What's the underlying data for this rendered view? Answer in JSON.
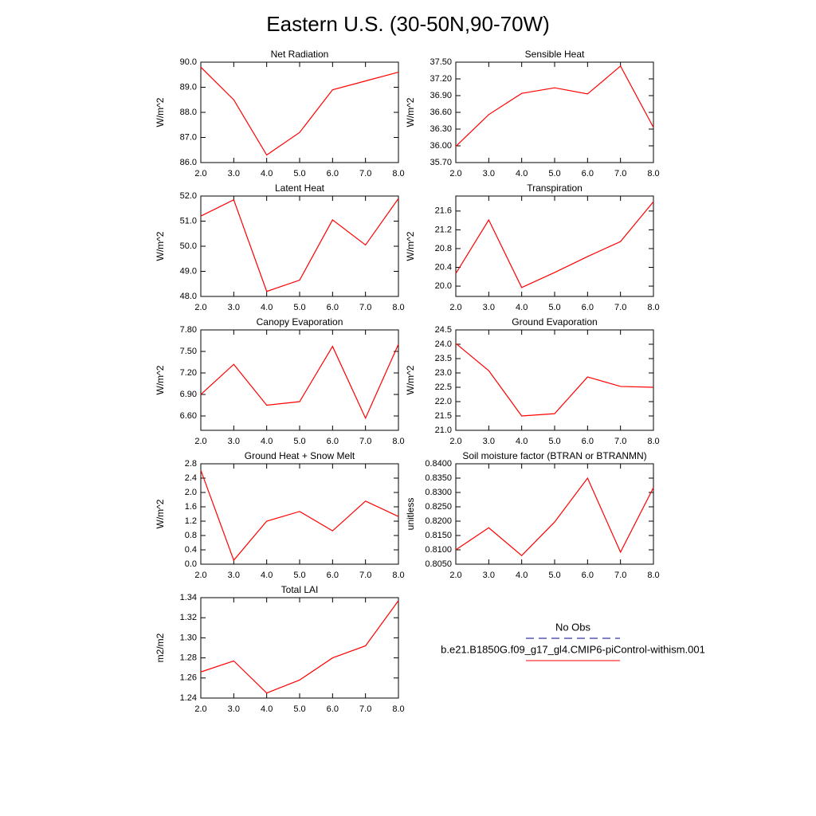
{
  "title": "Eastern U.S. (30-50N,90-70W)",
  "legend": [
    {
      "name": "No Obs",
      "color": "#00008b",
      "dash": true
    },
    {
      "name": "b.e21.B1850G.f09_g17_gl4.CMIP6-piControl-withism.001",
      "color": "#ff0000",
      "dash": false
    }
  ],
  "chart_data": [
    {
      "type": "line",
      "title": "Net Radiation",
      "y_label": "W/m^2",
      "x": [
        2,
        3,
        4,
        5,
        6,
        7,
        8
      ],
      "color": "#ff0000",
      "values": [
        89.8,
        88.5,
        86.3,
        87.2,
        88.9,
        89.25,
        89.6
      ],
      "xlim": [
        2,
        8
      ],
      "xticks": [
        {
          "value": 2,
          "label": "2.0"
        },
        {
          "value": 3,
          "label": "3.0"
        },
        {
          "value": 4,
          "label": "4.0"
        },
        {
          "value": 5,
          "label": "5.0"
        },
        {
          "value": 6,
          "label": "6.0"
        },
        {
          "value": 7,
          "label": "7.0"
        },
        {
          "value": 8,
          "label": "8.0"
        }
      ],
      "ylim": [
        86,
        90
      ],
      "yticks": [
        {
          "value": 86,
          "label": "86.0"
        },
        {
          "value": 87,
          "label": "87.0"
        },
        {
          "value": 88,
          "label": "88.0"
        },
        {
          "value": 89,
          "label": "89.0"
        },
        {
          "value": 90,
          "label": "90.0"
        }
      ]
    },
    {
      "type": "line",
      "title": "Sensible Heat",
      "y_label": "W/m^2",
      "x": [
        2,
        3,
        4,
        5,
        6,
        7,
        8
      ],
      "color": "#ff0000",
      "values": [
        35.99,
        36.56,
        36.94,
        37.04,
        36.93,
        37.43,
        36.33
      ],
      "xlim": [
        2,
        8
      ],
      "xticks": [
        {
          "value": 2,
          "label": "2.0"
        },
        {
          "value": 3,
          "label": "3.0"
        },
        {
          "value": 4,
          "label": "4.0"
        },
        {
          "value": 5,
          "label": "5.0"
        },
        {
          "value": 6,
          "label": "6.0"
        },
        {
          "value": 7,
          "label": "7.0"
        },
        {
          "value": 8,
          "label": "8.0"
        }
      ],
      "ylim": [
        35.7,
        37.5
      ],
      "yticks": [
        {
          "value": 35.7,
          "label": "35.70"
        },
        {
          "value": 36,
          "label": "36.00"
        },
        {
          "value": 36.3,
          "label": "36.30"
        },
        {
          "value": 36.6,
          "label": "36.60"
        },
        {
          "value": 36.9,
          "label": "36.90"
        },
        {
          "value": 37.2,
          "label": "37.20"
        },
        {
          "value": 37.5,
          "label": "37.50"
        }
      ]
    },
    {
      "type": "line",
      "title": "Latent Heat",
      "y_label": "W/m^2",
      "x": [
        2,
        3,
        4,
        5,
        6,
        7,
        8
      ],
      "color": "#ff0000",
      "values": [
        51.2,
        51.85,
        48.2,
        48.65,
        51.05,
        50.05,
        51.9
      ],
      "xlim": [
        2,
        8
      ],
      "xticks": [
        {
          "value": 2,
          "label": "2.0"
        },
        {
          "value": 3,
          "label": "3.0"
        },
        {
          "value": 4,
          "label": "4.0"
        },
        {
          "value": 5,
          "label": "5.0"
        },
        {
          "value": 6,
          "label": "6.0"
        },
        {
          "value": 7,
          "label": "7.0"
        },
        {
          "value": 8,
          "label": "8.0"
        }
      ],
      "ylim": [
        48,
        52
      ],
      "yticks": [
        {
          "value": 48,
          "label": "48.0"
        },
        {
          "value": 49,
          "label": "49.0"
        },
        {
          "value": 50,
          "label": "50.0"
        },
        {
          "value": 51,
          "label": "51.0"
        },
        {
          "value": 52,
          "label": "52.0"
        }
      ]
    },
    {
      "type": "line",
      "title": "Transpiration",
      "y_label": "W/m^2",
      "x": [
        2,
        3,
        4,
        5,
        6,
        7,
        8
      ],
      "color": "#ff0000",
      "values": [
        20.27,
        21.41,
        19.97,
        20.29,
        20.63,
        20.95,
        21.8
      ],
      "xlim": [
        2,
        8
      ],
      "xticks": [
        {
          "value": 2,
          "label": "2.0"
        },
        {
          "value": 3,
          "label": "3.0"
        },
        {
          "value": 4,
          "label": "4.0"
        },
        {
          "value": 5,
          "label": "5.0"
        },
        {
          "value": 6,
          "label": "6.0"
        },
        {
          "value": 7,
          "label": "7.0"
        },
        {
          "value": 8,
          "label": "8.0"
        }
      ],
      "ylim": [
        19.78,
        21.92
      ],
      "yticks": [
        {
          "value": 20,
          "label": "20.0"
        },
        20.4,
        20.8,
        21.2,
        21.6
      ]
    },
    {
      "type": "line",
      "title": "Canopy Evaporation",
      "y_label": "W/m^2",
      "x": [
        2,
        3,
        4,
        5,
        6,
        7,
        8
      ],
      "color": "#ff0000",
      "values": [
        6.9,
        7.32,
        6.75,
        6.8,
        7.57,
        6.57,
        7.6
      ],
      "xlim": [
        2,
        8
      ],
      "xticks": [
        {
          "value": 2,
          "label": "2.0"
        },
        {
          "value": 3,
          "label": "3.0"
        },
        {
          "value": 4,
          "label": "4.0"
        },
        {
          "value": 5,
          "label": "5.0"
        },
        {
          "value": 6,
          "label": "6.0"
        },
        {
          "value": 7,
          "label": "7.0"
        },
        {
          "value": 8,
          "label": "8.0"
        }
      ],
      "ylim": [
        6.4,
        7.8
      ],
      "yticks": [
        {
          "value": 6.6,
          "label": "6.60"
        },
        {
          "value": 6.9,
          "label": "6.90"
        },
        {
          "value": 7.2,
          "label": "7.20"
        },
        {
          "value": 7.5,
          "label": "7.50"
        },
        {
          "value": 7.8,
          "label": "7.80"
        }
      ]
    },
    {
      "type": "line",
      "title": "Ground Evaporation",
      "y_label": "W/m^2",
      "x": [
        2,
        3,
        4,
        5,
        6,
        7,
        8
      ],
      "color": "#ff0000",
      "values": [
        24.03,
        23.08,
        21.5,
        21.58,
        22.86,
        22.53,
        22.5
      ],
      "xlim": [
        2,
        8
      ],
      "xticks": [
        {
          "value": 2,
          "label": "2.0"
        },
        {
          "value": 3,
          "label": "3.0"
        },
        {
          "value": 4,
          "label": "4.0"
        },
        {
          "value": 5,
          "label": "5.0"
        },
        {
          "value": 6,
          "label": "6.0"
        },
        {
          "value": 7,
          "label": "7.0"
        },
        {
          "value": 8,
          "label": "8.0"
        }
      ],
      "ylim": [
        21,
        24.5
      ],
      "yticks": [
        {
          "value": 21,
          "label": "21.0"
        },
        21.5,
        {
          "value": 22,
          "label": "22.0"
        },
        22.5,
        {
          "value": 23,
          "label": "23.0"
        },
        23.5,
        {
          "value": 24,
          "label": "24.0"
        },
        24.5
      ]
    },
    {
      "type": "line",
      "title": "Ground Heat + Snow Melt",
      "y_label": "W/m^2",
      "x": [
        2,
        3,
        4,
        5,
        6,
        7,
        8
      ],
      "color": "#ff0000",
      "values": [
        2.62,
        0.11,
        1.2,
        1.47,
        0.93,
        1.76,
        1.33
      ],
      "xlim": [
        2,
        8
      ],
      "xticks": [
        {
          "value": 2,
          "label": "2.0"
        },
        {
          "value": 3,
          "label": "3.0"
        },
        {
          "value": 4,
          "label": "4.0"
        },
        {
          "value": 5,
          "label": "5.0"
        },
        {
          "value": 6,
          "label": "6.0"
        },
        {
          "value": 7,
          "label": "7.0"
        },
        {
          "value": 8,
          "label": "8.0"
        }
      ],
      "ylim": [
        0,
        2.8
      ],
      "yticks": [
        {
          "value": 0,
          "label": "0.0"
        },
        0.4,
        0.8,
        1.2,
        1.6,
        {
          "value": 2,
          "label": "2.0"
        },
        2.4,
        2.8
      ]
    },
    {
      "type": "line",
      "title": "Soil moisture factor (BTRAN or BTRANMN)",
      "y_label": "unitless",
      "x": [
        2,
        3,
        4,
        5,
        6,
        7,
        8
      ],
      "color": "#ff0000",
      "values": [
        0.81,
        0.8177,
        0.808,
        0.8197,
        0.835,
        0.8092,
        0.8317
      ],
      "xlim": [
        2,
        8
      ],
      "xticks": [
        {
          "value": 2,
          "label": "2.0"
        },
        {
          "value": 3,
          "label": "3.0"
        },
        {
          "value": 4,
          "label": "4.0"
        },
        {
          "value": 5,
          "label": "5.0"
        },
        {
          "value": 6,
          "label": "6.0"
        },
        {
          "value": 7,
          "label": "7.0"
        },
        {
          "value": 8,
          "label": "8.0"
        }
      ],
      "ylim": [
        0.805,
        0.84
      ],
      "yticks": [
        {
          "value": 0.805,
          "label": "0.8050"
        },
        {
          "value": 0.81,
          "label": "0.8100"
        },
        {
          "value": 0.815,
          "label": "0.8150"
        },
        {
          "value": 0.82,
          "label": "0.8200"
        },
        {
          "value": 0.825,
          "label": "0.8250"
        },
        {
          "value": 0.83,
          "label": "0.8300"
        },
        {
          "value": 0.835,
          "label": "0.8350"
        },
        {
          "value": 0.84,
          "label": "0.8400"
        }
      ]
    },
    {
      "type": "line",
      "title": "Total LAI",
      "y_label": "m2/m2",
      "x": [
        2,
        3,
        4,
        5,
        6,
        7,
        8
      ],
      "color": "#ff0000",
      "values": [
        1.266,
        1.277,
        1.245,
        1.258,
        1.28,
        1.292,
        1.337
      ],
      "xlim": [
        2,
        8
      ],
      "xticks": [
        {
          "value": 2,
          "label": "2.0"
        },
        {
          "value": 3,
          "label": "3.0"
        },
        {
          "value": 4,
          "label": "4.0"
        },
        {
          "value": 5,
          "label": "5.0"
        },
        {
          "value": 6,
          "label": "6.0"
        },
        {
          "value": 7,
          "label": "7.0"
        },
        {
          "value": 8,
          "label": "8.0"
        }
      ],
      "ylim": [
        1.24,
        1.34
      ],
      "yticks": [
        1.24,
        1.26,
        1.28,
        {
          "value": 1.3,
          "label": "1.30"
        },
        1.32,
        1.34
      ]
    }
  ]
}
